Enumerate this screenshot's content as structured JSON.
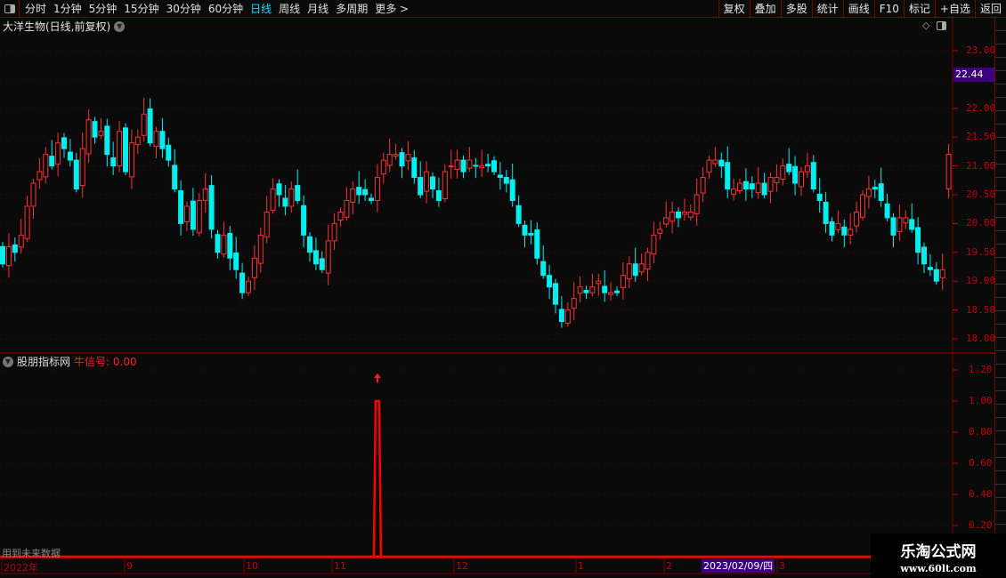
{
  "toolbar": {
    "periods": [
      "分时",
      "1分钟",
      "5分钟",
      "15分钟",
      "30分钟",
      "60分钟",
      "日线",
      "周线",
      "月线",
      "多周期",
      "更多 >"
    ],
    "active_period": "日线",
    "right_buttons": [
      "复权",
      "叠加",
      "多股",
      "统计",
      "画线",
      "F10",
      "标记",
      "+自选",
      "返回"
    ]
  },
  "main_chart": {
    "title": "大洋生物(日线,前复权)",
    "current_price": "22.44",
    "price_ticks": [
      "23.00",
      "22.50",
      "22.00",
      "21.50",
      "21.00",
      "20.50",
      "20.00",
      "19.50",
      "19.00",
      "18.50",
      "18.00"
    ],
    "colors": {
      "up": "#ff3030",
      "down": "#00f0f0",
      "axis": "#c00000",
      "current_bg": "#3d0080"
    }
  },
  "indicator": {
    "name": "股朋指标网",
    "signal_label": "牛信号: 0.00",
    "ticks": [
      "1.20",
      "1.00",
      "0.80",
      "0.60",
      "0.40",
      "0.20"
    ],
    "warning": "用到未来数据"
  },
  "time_axis": {
    "labels": [
      "2022年",
      "9",
      "10",
      "11",
      "12",
      "1",
      "2",
      "3"
    ],
    "cursor_date": "2023/02/09/四"
  },
  "watermark": {
    "name": "乐淘公式网",
    "url": "www.60lt.com"
  },
  "chart_data": {
    "type": "candlestick",
    "ylim": [
      18.0,
      23.0
    ],
    "closes": [
      19.3,
      19.6,
      19.5,
      19.8,
      20.3,
      20.7,
      20.9,
      21.2,
      21.0,
      21.4,
      21.3,
      21.1,
      20.6,
      21.3,
      21.8,
      21.5,
      21.6,
      21.2,
      21.0,
      21.6,
      20.9,
      21.4,
      21.5,
      21.9,
      21.4,
      21.6,
      21.3,
      21.1,
      20.6,
      20.0,
      20.3,
      19.9,
      20.4,
      20.6,
      19.9,
      19.5,
      19.8,
      19.4,
      19.2,
      18.8,
      19.0,
      19.4,
      19.8,
      20.2,
      20.6,
      20.5,
      20.3,
      20.6,
      20.4,
      19.8,
      19.5,
      19.3,
      19.2,
      19.7,
      20.0,
      20.2,
      20.4,
      20.6,
      20.5,
      20.5,
      20.4,
      20.8,
      21.1,
      21.2,
      21.2,
      21.0,
      21.2,
      20.8,
      20.5,
      20.9,
      20.6,
      20.4,
      20.9,
      21.0,
      21.1,
      20.9,
      21.1,
      21.0,
      21.0,
      21.0,
      20.9,
      20.8,
      20.7,
      20.4,
      20.0,
      19.8,
      19.8,
      19.4,
      19.1,
      18.9,
      18.6,
      18.3,
      18.5,
      18.7,
      18.9,
      18.8,
      18.9,
      19.0,
      18.8,
      18.8,
      18.8,
      19.1,
      19.3,
      19.1,
      19.3,
      19.5,
      19.8,
      19.9,
      20.1,
      20.2,
      20.1,
      20.2,
      20.2,
      20.5,
      20.8,
      21.1,
      21.1,
      21.0,
      20.6,
      20.6,
      20.7,
      20.6,
      20.6,
      20.7,
      20.5,
      20.8,
      20.8,
      21.0,
      20.9,
      20.7,
      20.9,
      21.0,
      20.6,
      20.4,
      20.0,
      19.8,
      20.0,
      19.8,
      19.9,
      20.2,
      20.5,
      20.6,
      20.6,
      20.4,
      20.1,
      19.8,
      20.1,
      20.1,
      19.9,
      19.5,
      19.3,
      19.2,
      19.0,
      19.2,
      21.2
    ],
    "indicator_values_signal_index": 61,
    "indicator_signal_value": 1.0
  }
}
